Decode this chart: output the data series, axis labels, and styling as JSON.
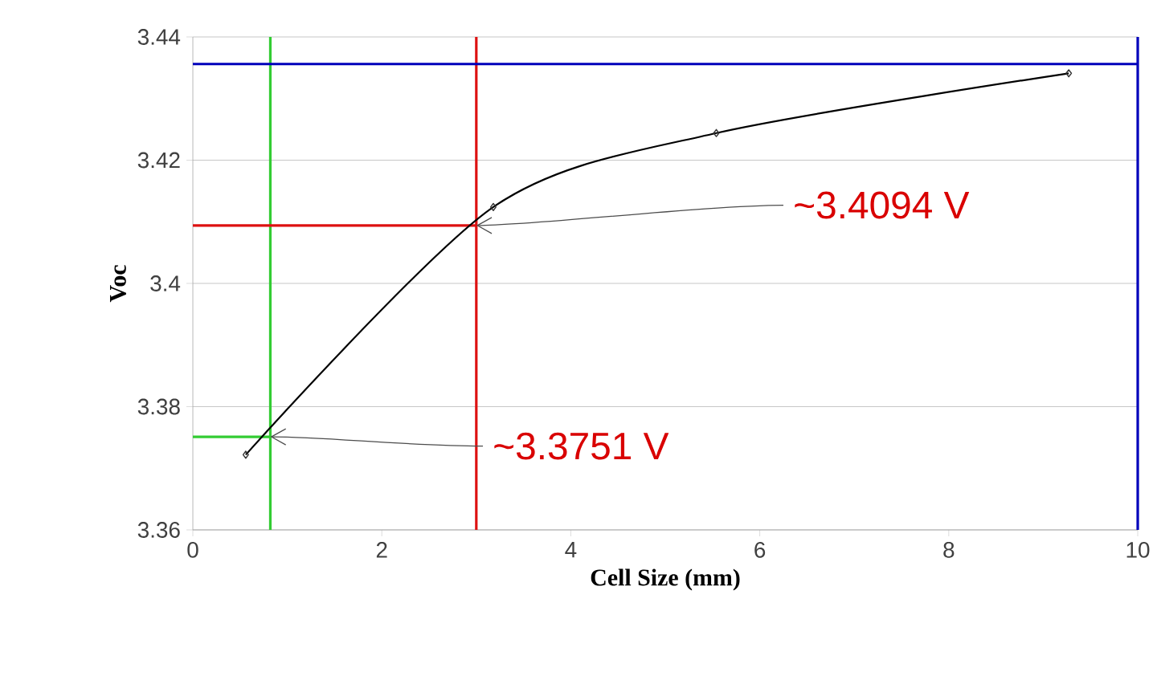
{
  "chart_data": {
    "type": "line",
    "xlabel": "Cell Size (mm)",
    "ylabel": "Voc",
    "x": [
      0.56,
      3.18,
      5.54,
      9.27
    ],
    "series": [
      {
        "color": "#000000",
        "values": [
          3.3722,
          3.4124,
          3.4244,
          3.4341
        ]
      }
    ],
    "xlim": [
      0,
      10
    ],
    "xticks": [
      0,
      2,
      4,
      6,
      8,
      10
    ],
    "ylim": [
      3.36,
      3.44
    ],
    "yticks": [
      {
        "value": 3.36,
        "label": "3.36"
      },
      {
        "value": 3.38,
        "label": "3.38"
      },
      {
        "value": 3.4,
        "label": "3.4"
      },
      {
        "value": 3.42,
        "label": "3.42"
      },
      {
        "value": 3.44,
        "label": "3.44"
      }
    ],
    "grid": "y",
    "marker": "diamond",
    "line_style": "solid",
    "ref_lines": [
      {
        "axis": "x",
        "value": 0.82,
        "color": "#33cc33"
      },
      {
        "axis": "y",
        "value": 3.3751,
        "color": "#33cc33"
      },
      {
        "axis": "x",
        "value": 3,
        "color": "#dd1111"
      },
      {
        "axis": "y",
        "value": 3.4094,
        "color": "#dd1111"
      },
      {
        "axis": "x",
        "value": 10,
        "color": "#0000bb"
      },
      {
        "axis": "y",
        "value": 3.4356,
        "color": "#0000bb"
      }
    ],
    "annotations": [
      {
        "text": "~3.3751 V",
        "x": 0.82,
        "y": 3.3751
      },
      {
        "text": "~3.4094 V",
        "x": 3,
        "y": 3.4094
      }
    ]
  }
}
